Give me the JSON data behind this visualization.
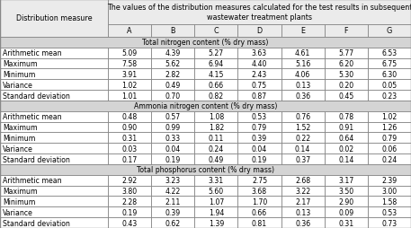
{
  "header_main": "The values of the distribution measures calculated for the test results in subsequent\nwastewater treatment plants",
  "col_label": "Distribution measure",
  "plant_cols": [
    "A",
    "B",
    "C",
    "D",
    "E",
    "F",
    "G"
  ],
  "sections": [
    {
      "title": "Total nitrogen content (% dry mass)",
      "rows": [
        {
          "label": "Arithmetic mean",
          "values": [
            "5.09",
            "4.39",
            "5.27",
            "3.63",
            "4.61",
            "5.77",
            "6.53"
          ]
        },
        {
          "label": "Maximum",
          "values": [
            "7.58",
            "5.62",
            "6.94",
            "4.40",
            "5.16",
            "6.20",
            "6.75"
          ]
        },
        {
          "label": "Minimum",
          "values": [
            "3.91",
            "2.82",
            "4.15",
            "2.43",
            "4.06",
            "5.30",
            "6.30"
          ]
        },
        {
          "label": "Variance",
          "values": [
            "1.02",
            "0.49",
            "0.66",
            "0.75",
            "0.13",
            "0.20",
            "0.05"
          ]
        },
        {
          "label": "Standard deviation",
          "values": [
            "1.01",
            "0.70",
            "0.82",
            "0.87",
            "0.36",
            "0.45",
            "0.23"
          ]
        }
      ]
    },
    {
      "title": "Ammonia nitrogen content (% dry mass)",
      "rows": [
        {
          "label": "Arithmetic mean",
          "values": [
            "0.48",
            "0.57",
            "1.08",
            "0.53",
            "0.76",
            "0.78",
            "1.02"
          ]
        },
        {
          "label": "Maximum",
          "values": [
            "0.90",
            "0.99",
            "1.82",
            "0.79",
            "1.52",
            "0.91",
            "1.26"
          ]
        },
        {
          "label": "Minimum",
          "values": [
            "0.31",
            "0.33",
            "0.11",
            "0.39",
            "0.22",
            "0.64",
            "0.79"
          ]
        },
        {
          "label": "Variance",
          "values": [
            "0.03",
            "0.04",
            "0.24",
            "0.04",
            "0.14",
            "0.02",
            "0.06"
          ]
        },
        {
          "label": "Standard deviation",
          "values": [
            "0.17",
            "0.19",
            "0.49",
            "0.19",
            "0.37",
            "0.14",
            "0.24"
          ]
        }
      ]
    },
    {
      "title": "Total phosphorus content (% dry mass)",
      "rows": [
        {
          "label": "Arithmetic mean",
          "values": [
            "2.92",
            "3.23",
            "3.31",
            "2.75",
            "2.68",
            "3.17",
            "2.39"
          ]
        },
        {
          "label": "Maximum",
          "values": [
            "3.80",
            "4.22",
            "5.60",
            "3.68",
            "3.22",
            "3.50",
            "3.00"
          ]
        },
        {
          "label": "Minimum",
          "values": [
            "2.28",
            "2.11",
            "1.07",
            "1.70",
            "2.17",
            "2.90",
            "1.58"
          ]
        },
        {
          "label": "Variance",
          "values": [
            "0.19",
            "0.39",
            "1.94",
            "0.66",
            "0.13",
            "0.09",
            "0.53"
          ]
        },
        {
          "label": "Standard deviation",
          "values": [
            "0.43",
            "0.62",
            "1.39",
            "0.81",
            "0.36",
            "0.31",
            "0.73"
          ]
        }
      ]
    }
  ],
  "bg_color": "#ffffff",
  "header_bg": "#ebebeb",
  "section_bg": "#d4d4d4",
  "border_color": "#888888",
  "data_font_size": 5.6,
  "header_font_size": 5.8,
  "section_font_size": 5.6
}
